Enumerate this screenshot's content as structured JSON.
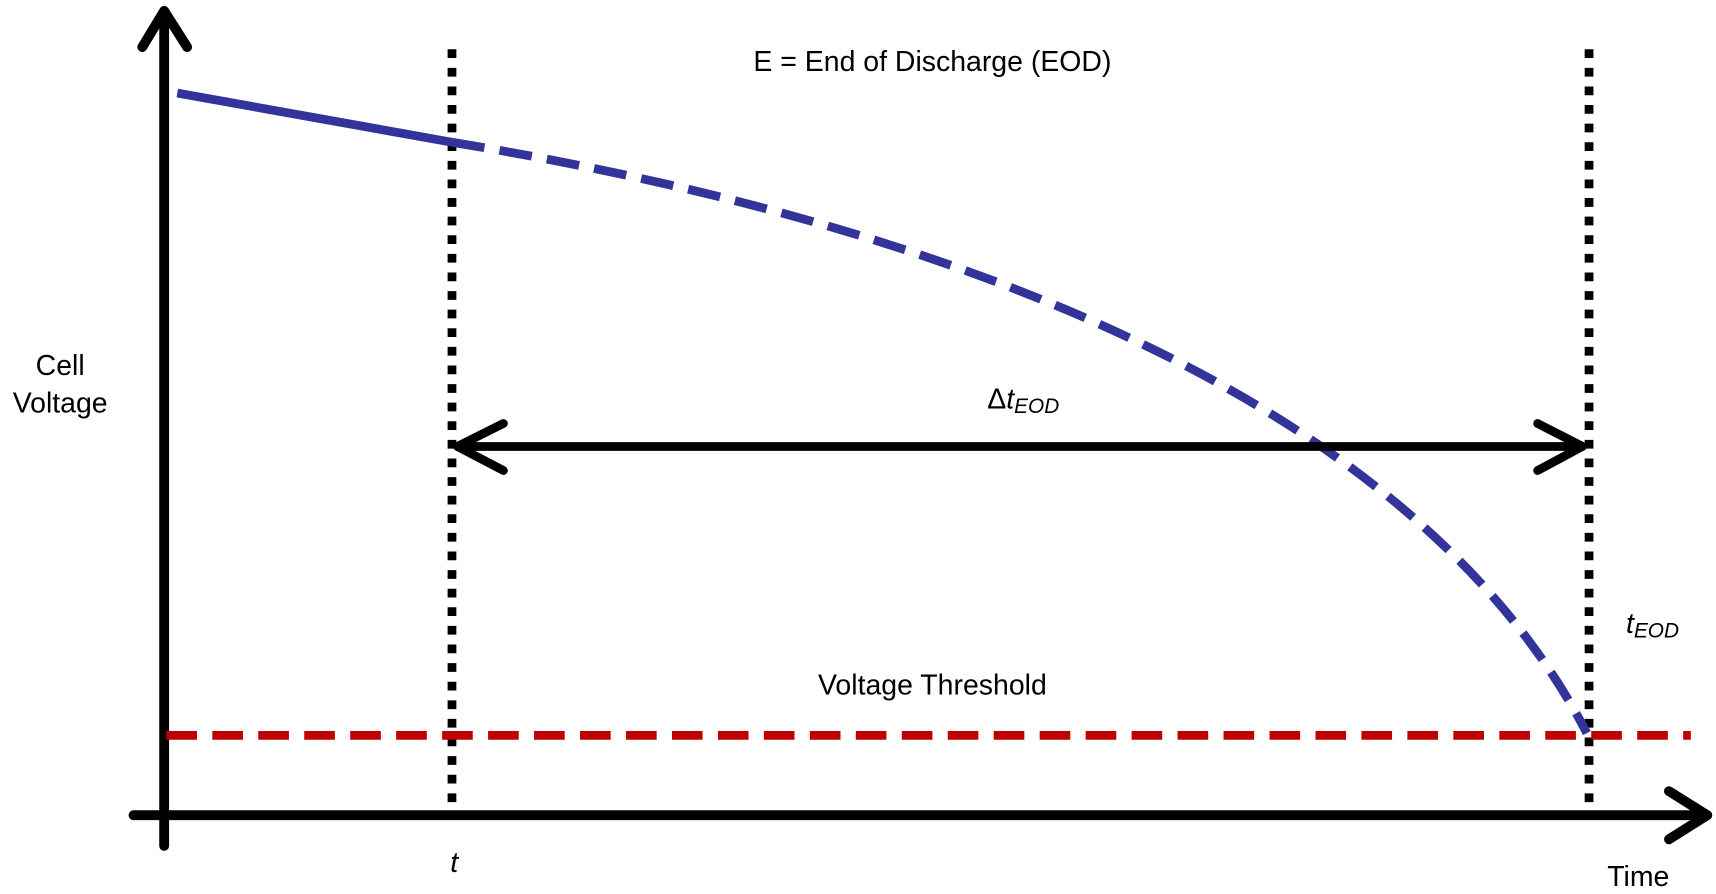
{
  "labels": {
    "title": "E = End of Discharge (EOD)",
    "y_axis": [
      "Cell",
      "Voltage"
    ],
    "delta": {
      "symbol": "Δ",
      "variable": "t",
      "subscript": "EOD"
    },
    "threshold": "Voltage Threshold",
    "t_now": "t",
    "t_eod": {
      "variable": "t",
      "subscript": "EOD"
    },
    "x_axis": "Time"
  }
}
